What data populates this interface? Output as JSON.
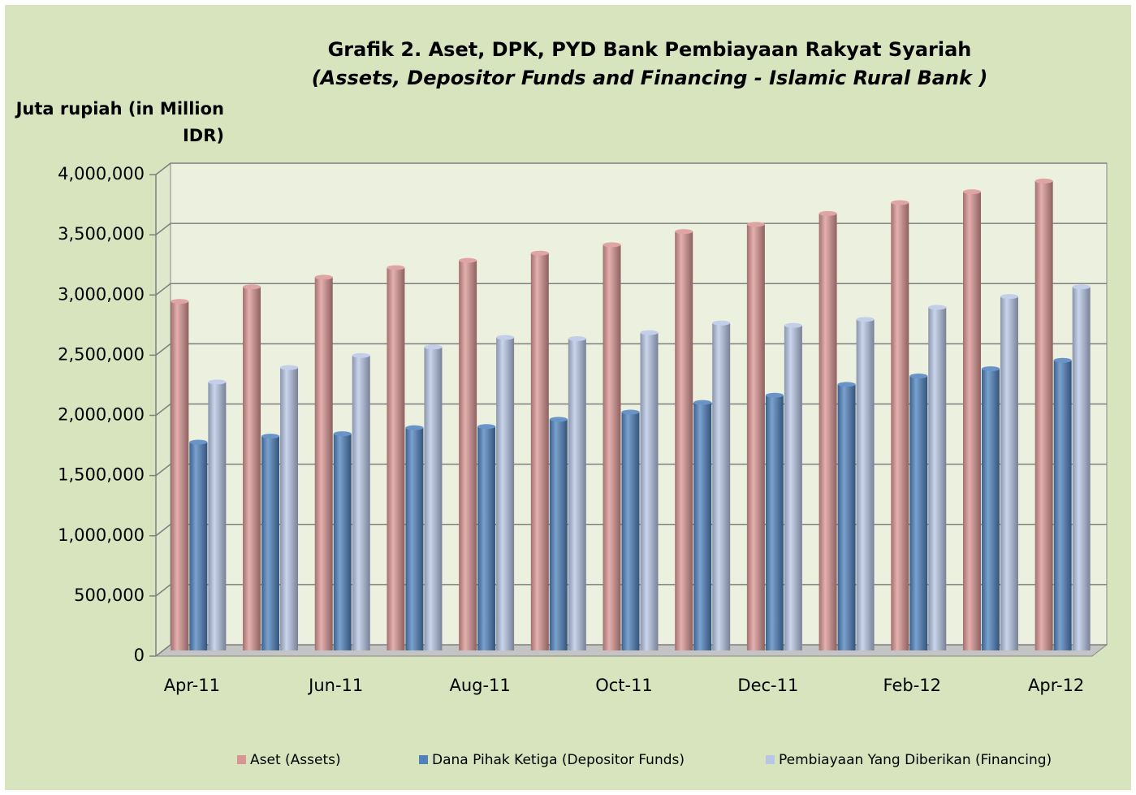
{
  "chart_data": {
    "type": "bar",
    "title": "Grafik 2. Aset, DPK, PYD Bank Pembiayaan Rakyat Syariah",
    "subtitle": "(Assets, Depositor Funds and Financing - Islamic Rural Bank )",
    "y_label": "Juta rupiah (in Million IDR)",
    "categories": [
      "Apr-11",
      null,
      "Jun-11",
      null,
      "Aug-11",
      null,
      "Oct-11",
      null,
      "Dec-11",
      null,
      "Feb-12",
      null,
      "Apr-12"
    ],
    "series": [
      {
        "name": "Aset (Assets)",
        "color": "#d99594",
        "values": [
          2900000,
          3020000,
          3100000,
          3180000,
          3240000,
          3300000,
          3370000,
          3480000,
          3540000,
          3630000,
          3720000,
          3810000,
          3900000
        ]
      },
      {
        "name": "Dana Pihak Ketiga (Depositor Funds)",
        "color": "#4f81bd",
        "values": [
          1730000,
          1780000,
          1800000,
          1850000,
          1860000,
          1920000,
          1980000,
          2060000,
          2120000,
          2210000,
          2280000,
          2340000,
          2410000
        ]
      },
      {
        "name": "Pembiayaan Yang Diberikan (Financing)",
        "color": "#b8c7e6",
        "values": [
          2230000,
          2350000,
          2450000,
          2520000,
          2600000,
          2590000,
          2640000,
          2720000,
          2700000,
          2750000,
          2850000,
          2940000,
          3020000
        ]
      }
    ],
    "ylim": [
      0,
      4000000
    ],
    "yticks": [
      0,
      {
        "value": 500000,
        "label": "500,000"
      },
      {
        "value": 1000000,
        "label": "1,000,000"
      },
      {
        "value": 1500000,
        "label": "1,500,000"
      },
      {
        "value": 2000000,
        "label": "2,000,000"
      },
      {
        "value": 2500000,
        "label": "2,500,000"
      },
      {
        "value": 3000000,
        "label": "3,000,000"
      },
      {
        "value": 3500000,
        "label": "3,500,000"
      },
      {
        "value": 4000000,
        "label": "4,000,000"
      }
    ],
    "grid": true,
    "legend": "bottom"
  }
}
